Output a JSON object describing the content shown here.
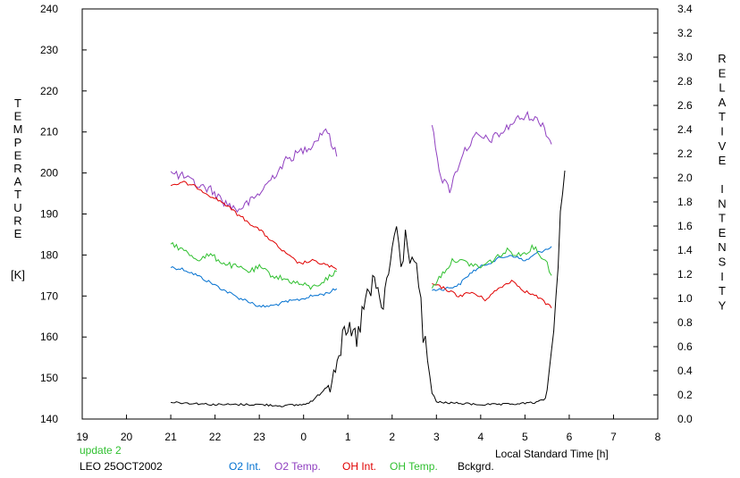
{
  "chart_data": {
    "type": "line",
    "title": "",
    "xlabel": "Local Standard Time [h]",
    "ylabel_left_letters": [
      "T",
      "E",
      "M",
      "P",
      "E",
      "R",
      "A",
      "T",
      "U",
      "R",
      "E"
    ],
    "ylabel_left_unit": "[K]",
    "ylabel_right_word1": [
      "R",
      "E",
      "L",
      "A",
      "T",
      "I",
      "V",
      "E"
    ],
    "ylabel_right_word2": [
      "I",
      "N",
      "T",
      "E",
      "N",
      "S",
      "I",
      "T",
      "Y"
    ],
    "x_ticks": [
      "19",
      "20",
      "21",
      "22",
      "23",
      "0",
      "1",
      "2",
      "3",
      "4",
      "5",
      "6",
      "7",
      "8"
    ],
    "xlim": [
      19,
      32
    ],
    "y_left_ticks": [
      "140",
      "150",
      "160",
      "170",
      "180",
      "190",
      "200",
      "210",
      "220",
      "230",
      "240"
    ],
    "ylim_left": [
      140,
      240
    ],
    "y_right_ticks": [
      "0.0",
      "0.2",
      "0.4",
      "0.6",
      "0.8",
      "1.0",
      "1.2",
      "1.4",
      "1.6",
      "1.8",
      "2.0",
      "2.2",
      "2.4",
      "2.6",
      "2.8",
      "3.0",
      "3.2",
      "3.4"
    ],
    "ylim_right": [
      0,
      3.4
    ],
    "grid": false,
    "annotations": {
      "update": "update 2",
      "station": "LEO 25OCT2002"
    },
    "legend_position": "bottom",
    "series": [
      {
        "name": "O2 Int.",
        "color": "#0070d0",
        "axis": "right",
        "segments": [
          {
            "x": [
              21.0,
              21.3,
              21.6,
              21.9,
              22.2,
              22.5,
              22.8,
              23.0,
              23.3,
              23.6,
              23.9,
              24.2,
              24.5,
              24.75
            ],
            "y": [
              1.26,
              1.24,
              1.19,
              1.13,
              1.07,
              1.01,
              0.97,
              0.93,
              0.94,
              0.97,
              0.99,
              1.02,
              1.04,
              1.08
            ]
          },
          {
            "x": [
              26.9,
              27.2,
              27.5,
              27.8,
              28.1,
              28.4,
              28.7,
              29.0,
              29.3,
              29.6
            ],
            "y": [
              1.07,
              1.08,
              1.11,
              1.22,
              1.28,
              1.33,
              1.36,
              1.31,
              1.38,
              1.43
            ]
          }
        ]
      },
      {
        "name": "O2 Temp.",
        "color": "#9040c0",
        "axis": "left",
        "segments": [
          {
            "x": [
              21.0,
              21.3,
              21.6,
              21.9,
              22.2,
              22.5,
              22.8,
              23.0,
              23.3,
              23.6,
              23.9,
              24.2,
              24.5,
              24.75
            ],
            "y": [
              200,
              199,
              197,
              196,
              193,
              191,
              193,
              195,
              199,
              203,
              205,
              207,
              211,
              204
            ]
          },
          {
            "x": [
              26.9,
              27.1,
              27.3,
              27.6,
              27.9,
              28.2,
              28.5,
              28.8,
              29.1,
              29.4,
              29.6
            ],
            "y": [
              212,
              199,
              196,
              205,
              209,
              208,
              210,
              213,
              214,
              212,
              207
            ]
          }
        ]
      },
      {
        "name": "OH Int.",
        "color": "#e00000",
        "axis": "right",
        "segments": [
          {
            "x": [
              21.0,
              21.3,
              21.6,
              21.9,
              22.2,
              22.5,
              22.8,
              23.0,
              23.3,
              23.6,
              23.9,
              24.2,
              24.5,
              24.75
            ],
            "y": [
              1.94,
              1.96,
              1.92,
              1.85,
              1.79,
              1.7,
              1.62,
              1.57,
              1.47,
              1.37,
              1.29,
              1.31,
              1.28,
              1.24
            ]
          },
          {
            "x": [
              26.9,
              27.2,
              27.5,
              27.8,
              28.1,
              28.4,
              28.7,
              29.0,
              29.3,
              29.6
            ],
            "y": [
              1.12,
              1.08,
              1.02,
              1.05,
              0.99,
              1.08,
              1.15,
              1.06,
              1.01,
              0.92
            ]
          }
        ]
      },
      {
        "name": "OH Temp.",
        "color": "#30c030",
        "axis": "left",
        "segments": [
          {
            "x": [
              21.0,
              21.3,
              21.6,
              21.9,
              22.2,
              22.5,
              22.8,
              23.0,
              23.3,
              23.6,
              23.9,
              24.2,
              24.5,
              24.75
            ],
            "y": [
              183,
              181,
              179,
              180,
              178,
              177,
              176,
              177,
              175,
              174,
              173,
              172,
              174,
              176
            ]
          },
          {
            "x": [
              26.9,
              27.1,
              27.4,
              27.7,
              28.0,
              28.3,
              28.6,
              28.9,
              29.2,
              29.5,
              29.6
            ],
            "y": [
              172,
              175,
              179,
              178,
              177,
              179,
              181,
              180,
              182,
              178,
              175
            ]
          }
        ]
      },
      {
        "name": "Bckgrd.",
        "color": "#000000",
        "axis": "right",
        "segments": [
          {
            "x": [
              21.0,
              21.5,
              22.0,
              22.5,
              23.0,
              23.5,
              24.0,
              24.2,
              24.4,
              24.6,
              24.8,
              25.0,
              25.2,
              25.4,
              25.6,
              25.8,
              26.0,
              26.1,
              26.2,
              26.3,
              26.4,
              26.5,
              26.6,
              26.7,
              26.8,
              26.9,
              27.0,
              27.5,
              28.0,
              28.5,
              29.0,
              29.3,
              29.5,
              29.6,
              29.7,
              29.8,
              29.9
            ],
            "y": [
              0.14,
              0.13,
              0.12,
              0.12,
              0.12,
              0.11,
              0.12,
              0.15,
              0.22,
              0.3,
              0.58,
              0.72,
              0.66,
              0.98,
              1.12,
              0.92,
              1.42,
              1.55,
              1.28,
              1.5,
              1.38,
              1.32,
              1.1,
              0.72,
              0.48,
              0.22,
              0.14,
              0.13,
              0.12,
              0.12,
              0.13,
              0.14,
              0.18,
              0.6,
              1.0,
              1.7,
              2.06
            ]
          }
        ]
      }
    ]
  }
}
